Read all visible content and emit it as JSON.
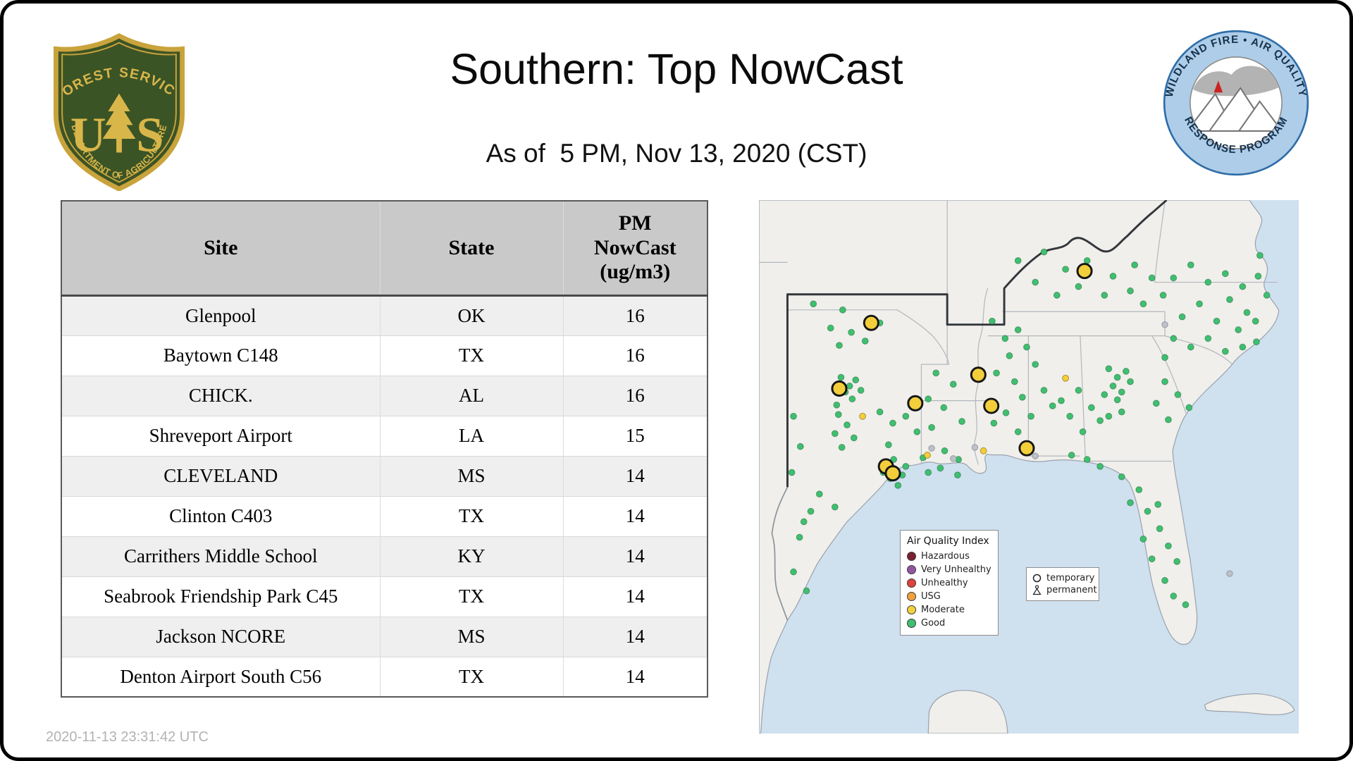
{
  "slide": {
    "title": "Southern: Top NowCast",
    "subtitle": "As of  5 PM, Nov 13, 2020 (CST)",
    "timestamp": "2020-11-13 23:31:42 UTC"
  },
  "fs_logo": {
    "top_text": "FOREST SERVICE",
    "letter_left": "U",
    "letter_right": "S",
    "bottom_text": "DEPARTMENT OF AGRICULTURE"
  },
  "aq_logo": {
    "top_text": "WILDLAND FIRE • AIR QUALITY",
    "bottom_text": "RESPONSE PROGRAM"
  },
  "table": {
    "columns": [
      "Site",
      "State",
      "PM\nNowCast\n(ug/m3)"
    ],
    "rows": [
      [
        "Glenpool",
        "OK",
        16
      ],
      [
        "Baytown C148",
        "TX",
        16
      ],
      [
        "CHICK.",
        "AL",
        16
      ],
      [
        "Shreveport Airport",
        "LA",
        15
      ],
      [
        "CLEVELAND",
        "MS",
        14
      ],
      [
        "Clinton C403",
        "TX",
        14
      ],
      [
        "Carrithers Middle School",
        "KY",
        14
      ],
      [
        "Seabrook Friendship Park C45",
        "TX",
        14
      ],
      [
        "Jackson NCORE",
        "MS",
        14
      ],
      [
        "Denton Airport South C56",
        "TX",
        14
      ]
    ]
  },
  "map": {
    "colors": {
      "water": "#cfe0ef",
      "land": "#f0efeb",
      "state_line": "#b3b8be",
      "region_line": "#33373c",
      "good": "#3fbf6f",
      "moderate": "#f2cf3a",
      "no_data": "#bcc2c8"
    },
    "legend": {
      "title": "Air Quality Index",
      "items": [
        {
          "label": "Hazardous",
          "color": "#7c1f2e"
        },
        {
          "label": "Very Unhealthy",
          "color": "#9355a2"
        },
        {
          "label": "Unhealthy",
          "color": "#e0413c"
        },
        {
          "label": "USG",
          "color": "#f2a03d"
        },
        {
          "label": "Moderate",
          "color": "#f2d13e"
        },
        {
          "label": "Good",
          "color": "#3fbf6f"
        }
      ]
    },
    "marker_legend": {
      "temporary": "temporary",
      "permanent": "permanent"
    },
    "points": {
      "good": [
        [
          63,
          120
        ],
        [
          97,
          127
        ],
        [
          83,
          148
        ],
        [
          107,
          153
        ],
        [
          123,
          163
        ],
        [
          93,
          168
        ],
        [
          140,
          142
        ],
        [
          95,
          205
        ],
        [
          105,
          215
        ],
        [
          112,
          208
        ],
        [
          100,
          222
        ],
        [
          118,
          220
        ],
        [
          108,
          230
        ],
        [
          90,
          237
        ],
        [
          140,
          245
        ],
        [
          155,
          258
        ],
        [
          170,
          250
        ],
        [
          183,
          268
        ],
        [
          150,
          283
        ],
        [
          148,
          305
        ],
        [
          158,
          312
        ],
        [
          166,
          318
        ],
        [
          152,
          322
        ],
        [
          161,
          330
        ],
        [
          170,
          308
        ],
        [
          144,
          315
        ],
        [
          156,
          300
        ],
        [
          92,
          248
        ],
        [
          102,
          260
        ],
        [
          88,
          270
        ],
        [
          110,
          275
        ],
        [
          96,
          286
        ],
        [
          70,
          340
        ],
        [
          52,
          372
        ],
        [
          60,
          360
        ],
        [
          47,
          390
        ],
        [
          88,
          355
        ],
        [
          40,
          430
        ],
        [
          55,
          452
        ],
        [
          40,
          250
        ],
        [
          48,
          285
        ],
        [
          38,
          315
        ],
        [
          205,
          200
        ],
        [
          225,
          213
        ],
        [
          196,
          230
        ],
        [
          214,
          240
        ],
        [
          200,
          263
        ],
        [
          190,
          298
        ],
        [
          210,
          310
        ],
        [
          230,
          318
        ],
        [
          235,
          256
        ],
        [
          270,
          140
        ],
        [
          285,
          160
        ],
        [
          300,
          150
        ],
        [
          290,
          180
        ],
        [
          310,
          170
        ],
        [
          275,
          200
        ],
        [
          296,
          210
        ],
        [
          320,
          190
        ],
        [
          305,
          228
        ],
        [
          286,
          246
        ],
        [
          315,
          250
        ],
        [
          330,
          220
        ],
        [
          340,
          238
        ],
        [
          272,
          258
        ],
        [
          300,
          268
        ],
        [
          300,
          70
        ],
        [
          330,
          60
        ],
        [
          355,
          80
        ],
        [
          380,
          70
        ],
        [
          410,
          88
        ],
        [
          435,
          75
        ],
        [
          370,
          100
        ],
        [
          400,
          110
        ],
        [
          345,
          110
        ],
        [
          320,
          95
        ],
        [
          430,
          105
        ],
        [
          455,
          90
        ],
        [
          468,
          110
        ],
        [
          445,
          120
        ],
        [
          405,
          195
        ],
        [
          415,
          205
        ],
        [
          425,
          198
        ],
        [
          410,
          215
        ],
        [
          420,
          222
        ],
        [
          430,
          210
        ],
        [
          400,
          225
        ],
        [
          415,
          231
        ],
        [
          370,
          220
        ],
        [
          385,
          240
        ],
        [
          360,
          250
        ],
        [
          395,
          255
        ],
        [
          375,
          268
        ],
        [
          405,
          250
        ],
        [
          420,
          245
        ],
        [
          350,
          232
        ],
        [
          480,
          90
        ],
        [
          500,
          75
        ],
        [
          520,
          95
        ],
        [
          540,
          85
        ],
        [
          560,
          100
        ],
        [
          578,
          88
        ],
        [
          545,
          115
        ],
        [
          565,
          130
        ],
        [
          510,
          120
        ],
        [
          490,
          135
        ],
        [
          530,
          140
        ],
        [
          555,
          150
        ],
        [
          575,
          140
        ],
        [
          576,
          164
        ],
        [
          560,
          170
        ],
        [
          520,
          160
        ],
        [
          500,
          170
        ],
        [
          480,
          160
        ],
        [
          540,
          175
        ],
        [
          588,
          110
        ],
        [
          470,
          182
        ],
        [
          580,
          64
        ],
        [
          470,
          210
        ],
        [
          485,
          225
        ],
        [
          498,
          240
        ],
        [
          460,
          235
        ],
        [
          474,
          254
        ],
        [
          420,
          320
        ],
        [
          440,
          335
        ],
        [
          450,
          360
        ],
        [
          464,
          380
        ],
        [
          474,
          400
        ],
        [
          484,
          418
        ],
        [
          470,
          440
        ],
        [
          480,
          458
        ],
        [
          494,
          468
        ],
        [
          455,
          415
        ],
        [
          445,
          392
        ],
        [
          430,
          350
        ],
        [
          462,
          352
        ],
        [
          380,
          300
        ],
        [
          395,
          308
        ],
        [
          362,
          295
        ],
        [
          215,
          290
        ],
        [
          231,
          300
        ],
        [
          196,
          315
        ]
      ],
      "moderate_permanent": [
        [
          120,
          250
        ],
        [
          195,
          295
        ],
        [
          355,
          206
        ],
        [
          260,
          290
        ]
      ],
      "no_data": [
        [
          320,
          296
        ],
        [
          225,
          299
        ],
        [
          470,
          144
        ],
        [
          250,
          286
        ],
        [
          200,
          287
        ],
        [
          545,
          432
        ]
      ],
      "moderate_temporary": [
        [
          377,
          82
        ],
        [
          130,
          142
        ],
        [
          254,
          202
        ],
        [
          93,
          218
        ],
        [
          181,
          235
        ],
        [
          269,
          238
        ],
        [
          310,
          287
        ],
        [
          147,
          308
        ],
        [
          155,
          316
        ]
      ]
    }
  }
}
